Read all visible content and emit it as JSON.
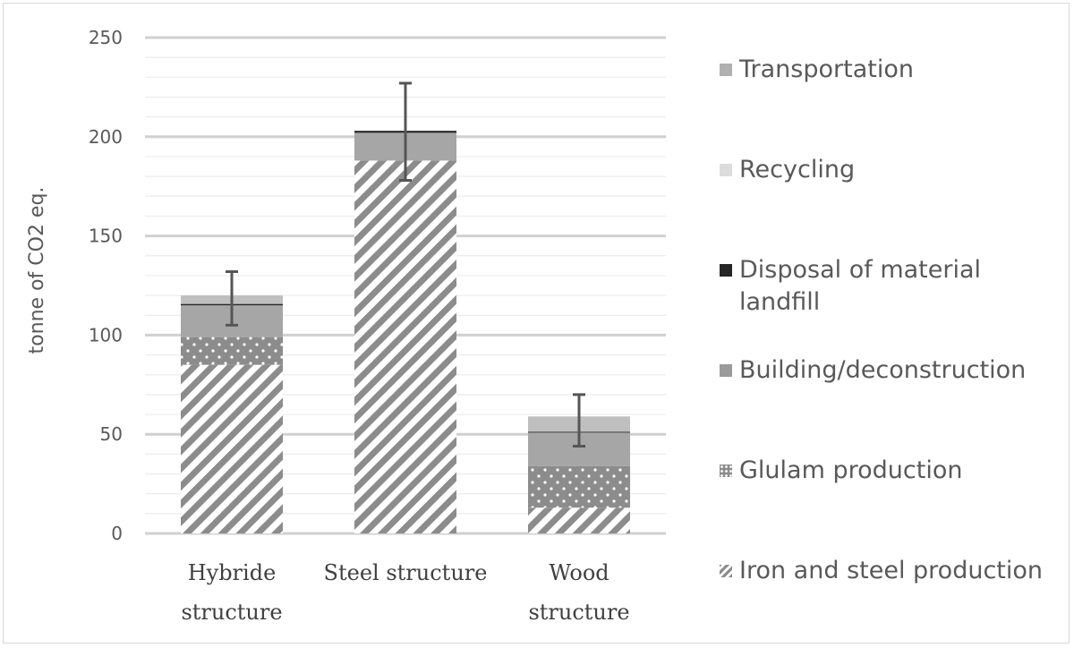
{
  "chart_data": {
    "type": "bar",
    "stacked": true,
    "title": "",
    "xlabel": "",
    "ylabel": "tonne of  CO2 eq.",
    "ylim": [
      0,
      250
    ],
    "yticks": [
      "250",
      "200",
      "150",
      "100",
      "50",
      "0"
    ],
    "ytick_values": [
      250,
      200,
      150,
      100,
      50,
      0
    ],
    "minor_gridlines": true,
    "grid": true,
    "legend_position": "right",
    "categories": [
      [
        "Hybride",
        "structure"
      ],
      [
        "Steel structure"
      ],
      [
        "Wood",
        "structure"
      ]
    ],
    "series": [
      {
        "name": "Iron and steel production",
        "pattern": "diagonal-stripes",
        "color": "#8c8c8c",
        "values": [
          85,
          188,
          13
        ]
      },
      {
        "name": "Glulam production",
        "pattern": "dots",
        "color": "#8c8c8c",
        "values": [
          14,
          0,
          21
        ]
      },
      {
        "name": "Building/deconstruction",
        "pattern": "solid",
        "color": "#a6a6a6",
        "values": [
          16,
          14,
          17
        ]
      },
      {
        "name": "Disposal of material landfill",
        "pattern": "solid",
        "color": "#262626",
        "values": [
          0.7,
          1,
          0.3
        ]
      },
      {
        "name": "Recycling",
        "pattern": "solid",
        "color": "#d9d9d9",
        "values": [
          0,
          0,
          0
        ]
      },
      {
        "name": "Transportation",
        "pattern": "solid",
        "color": "#bfbfbf",
        "values": [
          4.3,
          0,
          7.7
        ]
      }
    ],
    "error_bars": [
      {
        "low": 105,
        "high": 132
      },
      {
        "low": 178,
        "high": 227
      },
      {
        "low": 44,
        "high": 70
      }
    ],
    "legend": [
      {
        "label": "Transportation",
        "color": "#b0b0b0",
        "pattern": "solid"
      },
      {
        "label": "Recycling",
        "color": "#dcdcdc",
        "pattern": "solid"
      },
      {
        "label": "Disposal of material landfill",
        "color": "#262626",
        "pattern": "solid"
      },
      {
        "label": "Building/deconstruction",
        "color": "#9a9a9a",
        "pattern": "solid"
      },
      {
        "label": "Glulam production",
        "color": "#8c8c8c",
        "pattern": "dots"
      },
      {
        "label": "Iron and steel production",
        "color": "#8c8c8c",
        "pattern": "diagonal-stripes"
      }
    ]
  }
}
